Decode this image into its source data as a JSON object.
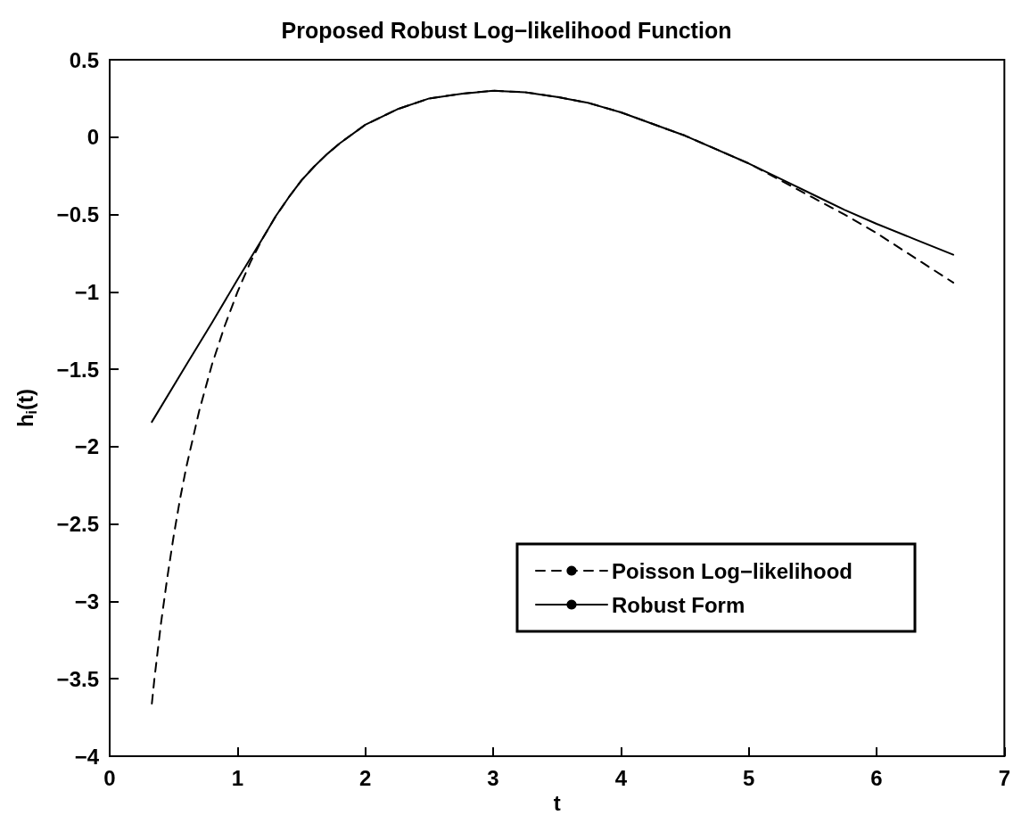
{
  "chart_data": {
    "type": "line",
    "title": "Proposed Robust Log−likelihood Function",
    "xlabel": "t",
    "ylabel": "h$_{i}$(t)",
    "xlim": [
      0,
      7
    ],
    "xticks": [
      0,
      1,
      2,
      3,
      4,
      5,
      6,
      7
    ],
    "ylim": [
      -4,
      0.5
    ],
    "yticks": [
      -4,
      -3.5,
      -3,
      -2.5,
      -2,
      -1.5,
      -1,
      -0.5,
      0,
      0.5
    ],
    "grid": false,
    "legend": "bottom right",
    "marker": "none",
    "series": [
      {
        "name": "Poisson Log−likelihood",
        "color": "#000000",
        "line_style": "dashed",
        "x": [
          0.33,
          0.35,
          0.4,
          0.45,
          0.5,
          0.55,
          0.6,
          0.7,
          0.8,
          0.9,
          1.0,
          1.1,
          1.2,
          1.3,
          1.4,
          1.5,
          1.6,
          1.7,
          1.8,
          2.0,
          2.25,
          2.5,
          2.75,
          3.0,
          3.25,
          3.5,
          3.75,
          4.0,
          4.5,
          5.0,
          5.25,
          5.5,
          5.75,
          6.0,
          6.3,
          6.6
        ],
        "values": [
          -3.66,
          -3.5,
          -3.15,
          -2.85,
          -2.58,
          -2.34,
          -2.13,
          -1.77,
          -1.47,
          -1.22,
          -1.0,
          -0.81,
          -0.65,
          -0.51,
          -0.39,
          -0.28,
          -0.19,
          -0.11,
          -0.04,
          0.08,
          0.18,
          0.25,
          0.28,
          0.3,
          0.29,
          0.26,
          0.22,
          0.16,
          0.01,
          -0.17,
          -0.28,
          -0.39,
          -0.5,
          -0.62,
          -0.78,
          -0.94
        ]
      },
      {
        "name": "Robust Form",
        "color": "#000000",
        "line_style": "solid",
        "x": [
          0.33,
          0.6,
          0.8,
          1.0,
          1.2,
          1.3,
          1.4,
          1.5,
          1.6,
          1.7,
          1.8,
          2.0,
          2.25,
          2.5,
          2.75,
          3.0,
          3.25,
          3.5,
          3.75,
          4.0,
          4.5,
          5.0,
          5.25,
          5.5,
          5.75,
          6.0,
          6.3,
          6.6
        ],
        "values": [
          -1.84,
          -1.47,
          -1.2,
          -0.92,
          -0.65,
          -0.51,
          -0.39,
          -0.28,
          -0.19,
          -0.11,
          -0.04,
          0.08,
          0.18,
          0.25,
          0.28,
          0.3,
          0.29,
          0.26,
          0.22,
          0.16,
          0.01,
          -0.17,
          -0.27,
          -0.37,
          -0.47,
          -0.56,
          -0.66,
          -0.76
        ]
      }
    ]
  }
}
